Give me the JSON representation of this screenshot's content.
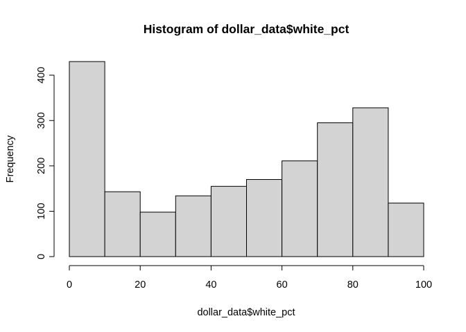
{
  "chart_data": {
    "type": "bar",
    "subtype": "histogram",
    "title": "Histogram of dollar_data$white_pct",
    "xlabel": "dollar_data$white_pct",
    "ylabel": "Frequency",
    "bins": [
      {
        "from": 0,
        "to": 10,
        "count": 430
      },
      {
        "from": 10,
        "to": 20,
        "count": 143
      },
      {
        "from": 20,
        "to": 30,
        "count": 98
      },
      {
        "from": 30,
        "to": 40,
        "count": 134
      },
      {
        "from": 40,
        "to": 50,
        "count": 155
      },
      {
        "from": 50,
        "to": 60,
        "count": 170
      },
      {
        "from": 60,
        "to": 70,
        "count": 211
      },
      {
        "from": 70,
        "to": 80,
        "count": 295
      },
      {
        "from": 80,
        "to": 90,
        "count": 328
      },
      {
        "from": 90,
        "to": 100,
        "count": 118
      }
    ],
    "xlim": [
      0,
      100
    ],
    "ylim": [
      0,
      430
    ],
    "xticks": [
      0,
      20,
      40,
      60,
      80,
      100
    ],
    "yticks": [
      0,
      100,
      200,
      300,
      400
    ],
    "bar_fill": "#d3d3d3",
    "bar_stroke": "#000000",
    "grid": false,
    "legend": "none"
  }
}
